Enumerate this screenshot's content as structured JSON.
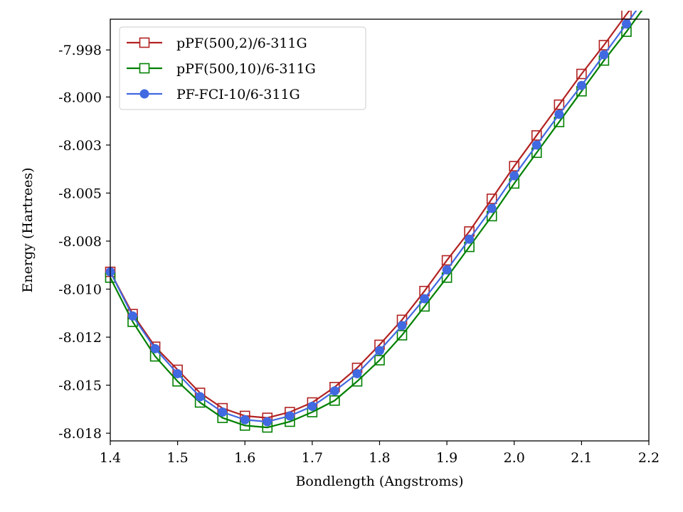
{
  "chart_data": {
    "type": "line",
    "title": "",
    "xlabel": "Bondlength (Angstroms)",
    "ylabel": "Energy (Hartrees)",
    "xlim": [
      1.4,
      2.2
    ],
    "ylim": [
      -8.0181,
      -7.99615
    ],
    "xticks": [
      1.4,
      1.5,
      1.6,
      1.7,
      1.8,
      1.9,
      2.0,
      2.1,
      2.2
    ],
    "xtick_labels": [
      "1.4",
      "1.5",
      "1.6",
      "1.7",
      "1.8",
      "1.9",
      "2.0",
      "2.1",
      "2.2"
    ],
    "yticks": [
      -7.99775,
      -8.0002,
      -8.0027,
      -8.0052,
      -8.0077,
      -8.0102,
      -8.0127,
      -8.0152,
      -8.0177
    ],
    "ytick_labels": [
      "-7.998",
      "-8.000",
      "-8.003",
      "-8.005",
      "-8.008",
      "-8.010",
      "-8.012",
      "-8.015",
      "-8.018"
    ],
    "grid": false,
    "legend_position": "top-left",
    "x": [
      1.4,
      1.4333,
      1.4667,
      1.5,
      1.5333,
      1.5667,
      1.6,
      1.6333,
      1.6667,
      1.7,
      1.7333,
      1.7667,
      1.8,
      1.8333,
      1.8667,
      1.9,
      1.9333,
      1.9667,
      2.0,
      2.0333,
      2.0667,
      2.1,
      2.1333,
      2.1667,
      2.2
    ],
    "series": [
      {
        "name": "pPF(500,2)/6-311G",
        "color": "#b22222",
        "marker": "square-open",
        "values": [
          -8.0093,
          -8.0115,
          -8.0132,
          -8.0144,
          -8.0156,
          -8.0164,
          -8.0168,
          -8.0169,
          -8.0166,
          -8.0161,
          -8.0153,
          -8.0143,
          -8.0131,
          -8.0118,
          -8.0103,
          -8.0087,
          -8.0072,
          -8.0055,
          -8.0038,
          -8.0022,
          -8.0006,
          -7.999,
          -7.9975,
          -7.9959,
          -7.9944
        ]
      },
      {
        "name": "pPF(500,10)/6-311G",
        "color": "#008000",
        "marker": "square-open",
        "values": [
          -8.0096,
          -8.0119,
          -8.0137,
          -8.015,
          -8.0161,
          -8.0169,
          -8.0173,
          -8.0174,
          -8.0171,
          -8.0166,
          -8.016,
          -8.015,
          -8.0139,
          -8.0126,
          -8.0111,
          -8.0096,
          -8.008,
          -8.0064,
          -8.0047,
          -8.0031,
          -8.0015,
          -7.9999,
          -7.9983,
          -7.9968,
          -7.9952
        ]
      },
      {
        "name": "PF-FCI-10/6-311G",
        "color": "#4169e1",
        "marker": "circle-filled",
        "values": [
          -8.0093,
          -8.0116,
          -8.0133,
          -8.0146,
          -8.0158,
          -8.0166,
          -8.017,
          -8.0171,
          -8.0168,
          -8.0163,
          -8.0155,
          -8.0146,
          -8.0134,
          -8.0121,
          -8.0107,
          -8.0092,
          -8.0076,
          -8.006,
          -8.0043,
          -8.0027,
          -8.0011,
          -7.9996,
          -7.998,
          -7.9964,
          -7.9948
        ]
      }
    ]
  }
}
